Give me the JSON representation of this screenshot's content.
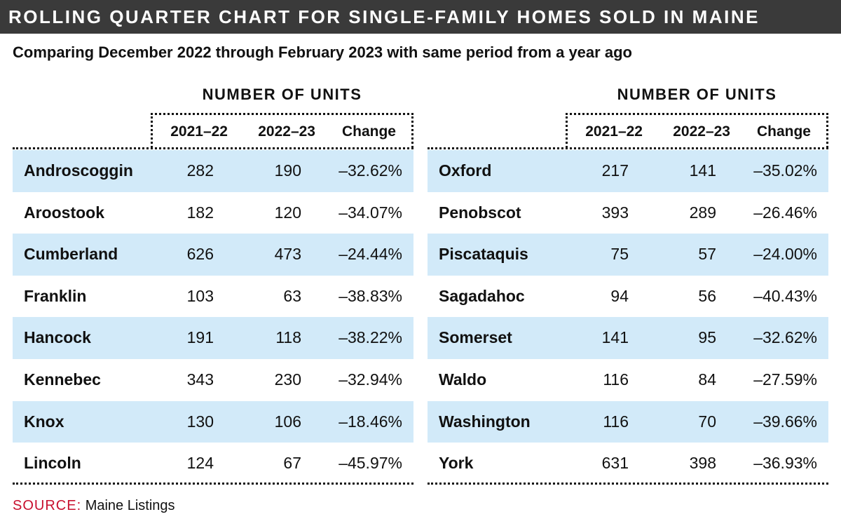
{
  "title": "ROLLING QUARTER CHART FOR SINGLE-FAMILY HOMES SOLD IN MAINE",
  "subtitle": "Comparing December 2022 through February 2023 with same period from a year ago",
  "group_header": "NUMBER OF UNITS",
  "columns": {
    "a": "2021–22",
    "b": "2022–23",
    "change": "Change"
  },
  "source": {
    "label": "SOURCE:",
    "text": "Maine Listings"
  },
  "colors": {
    "title_bg": "#3a3a3a",
    "row_shade": "#d2eaf9",
    "source_label": "#c8102e"
  },
  "chart_data": {
    "type": "table",
    "title": "ROLLING QUARTER CHART FOR SINGLE-FAMILY HOMES SOLD IN MAINE",
    "subtitle": "Comparing December 2022 through February 2023 with same period from a year ago",
    "columns": [
      "",
      "2021–22",
      "2022–23",
      "Change"
    ],
    "left": [
      {
        "county": "Androscoggin",
        "y2122": "282",
        "y2223": "190",
        "change": "–32.62%"
      },
      {
        "county": "Aroostook",
        "y2122": "182",
        "y2223": "120",
        "change": "–34.07%"
      },
      {
        "county": "Cumberland",
        "y2122": "626",
        "y2223": "473",
        "change": "–24.44%"
      },
      {
        "county": "Franklin",
        "y2122": "103",
        "y2223": "63",
        "change": "–38.83%"
      },
      {
        "county": "Hancock",
        "y2122": "191",
        "y2223": "118",
        "change": "–38.22%"
      },
      {
        "county": "Kennebec",
        "y2122": "343",
        "y2223": "230",
        "change": "–32.94%"
      },
      {
        "county": "Knox",
        "y2122": "130",
        "y2223": "106",
        "change": "–18.46%"
      },
      {
        "county": "Lincoln",
        "y2122": "124",
        "y2223": "67",
        "change": "–45.97%"
      }
    ],
    "right": [
      {
        "county": "Oxford",
        "y2122": "217",
        "y2223": "141",
        "change": "–35.02%"
      },
      {
        "county": "Penobscot",
        "y2122": "393",
        "y2223": "289",
        "change": "–26.46%"
      },
      {
        "county": "Piscataquis",
        "y2122": "75",
        "y2223": "57",
        "change": "–24.00%"
      },
      {
        "county": "Sagadahoc",
        "y2122": "94",
        "y2223": "56",
        "change": "–40.43%"
      },
      {
        "county": "Somerset",
        "y2122": "141",
        "y2223": "95",
        "change": "–32.62%"
      },
      {
        "county": "Waldo",
        "y2122": "116",
        "y2223": "84",
        "change": "–27.59%"
      },
      {
        "county": "Washington",
        "y2122": "116",
        "y2223": "70",
        "change": "–39.66%"
      },
      {
        "county": "York",
        "y2122": "631",
        "y2223": "398",
        "change": "–36.93%"
      }
    ]
  }
}
